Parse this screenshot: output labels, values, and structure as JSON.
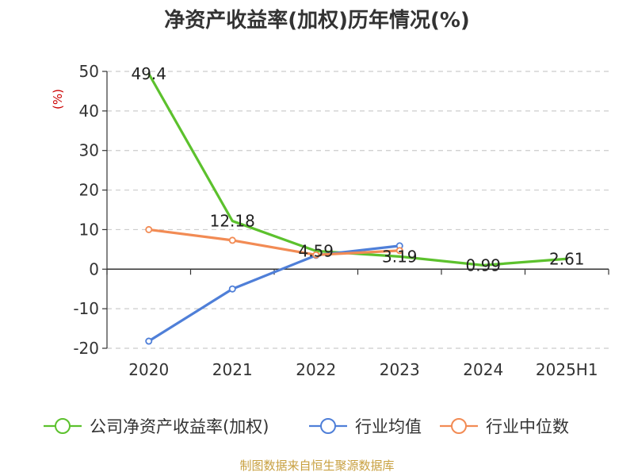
{
  "chart_data": {
    "type": "line",
    "title": "净资产收益率(加权)历年情况(%)",
    "unit_label": "(%)",
    "categories": [
      "2020",
      "2021",
      "2022",
      "2023",
      "2024",
      "2025H1"
    ],
    "ylim": [
      -20,
      50
    ],
    "yticks": [
      50,
      40,
      30,
      20,
      10,
      0,
      -10,
      -20
    ],
    "grid": true,
    "legend_position": "bottom",
    "series": [
      {
        "name": "公司净资产收益率(加权)",
        "color": "#5cc12d",
        "values": [
          49.4,
          12.18,
          4.59,
          3.19,
          0.99,
          2.61
        ],
        "labels": [
          "49.4",
          "12.18",
          "4.59",
          "3.19",
          "0.99",
          "2.61"
        ],
        "show_markers": false
      },
      {
        "name": "行业均值",
        "color": "#4f7fd8",
        "values": [
          -18.2,
          -5.0,
          3.5,
          5.9,
          null,
          null
        ],
        "show_markers": true
      },
      {
        "name": "行业中位数",
        "color": "#f28b54",
        "values": [
          10.0,
          7.3,
          3.6,
          4.7,
          null,
          null
        ],
        "show_markers": true
      }
    ],
    "source": "制图数据来自恒生聚源数据库"
  },
  "colors": {
    "axis": "#333333",
    "grid": "#cccccc",
    "unit": "#cc0000",
    "source": "#c8a040"
  }
}
